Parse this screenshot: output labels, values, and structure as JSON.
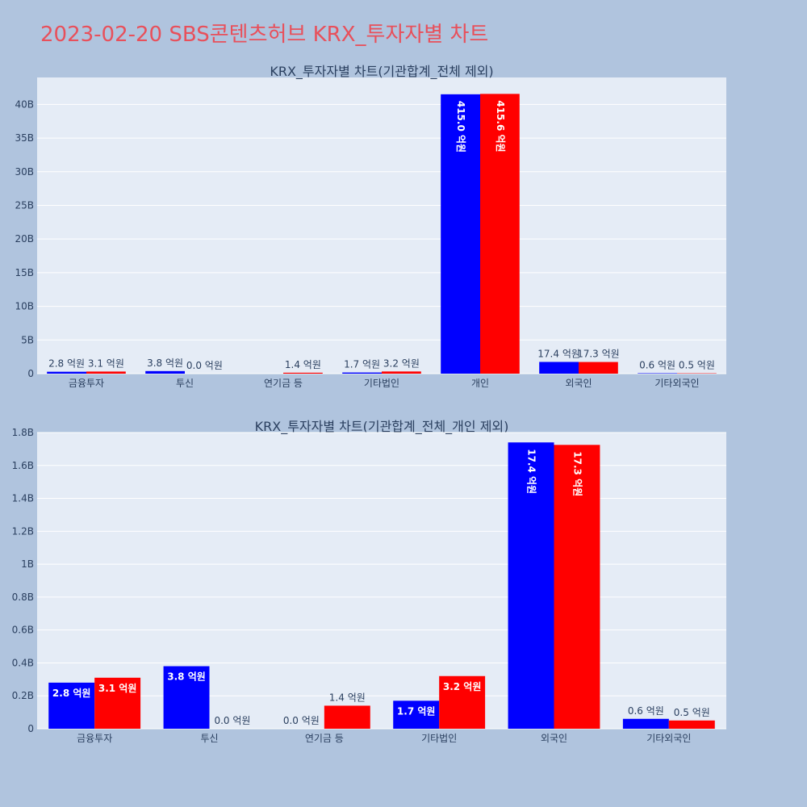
{
  "page_title": "2023-02-20 SBS콘텐츠허브 KRX_투자자별 차트",
  "colors": {
    "series_a": "#0000ff",
    "series_b": "#ff0000",
    "title": "#e8505b",
    "background": "#b0c4de",
    "plot_bg": "#e5ecf6"
  },
  "chart_data": [
    {
      "type": "bar",
      "title": "KRX_투자자별 차트(기관합계_전체 제외)",
      "categories": [
        "금융투자",
        "투신",
        "연기금 등",
        "기타법인",
        "개인",
        "외국인",
        "기타외국인"
      ],
      "series": [
        {
          "color": "#0000ff",
          "values": [
            0.28,
            0.38,
            0.0,
            0.17,
            41.5,
            1.74,
            0.06
          ],
          "labels": [
            "2.8 억원",
            "3.8 억원",
            "",
            "1.7 억원",
            "415.0 억원",
            "17.4 억원",
            "0.6 억원"
          ]
        },
        {
          "color": "#ff0000",
          "values": [
            0.31,
            0.0,
            0.14,
            0.32,
            41.56,
            1.73,
            0.05
          ],
          "labels": [
            "3.1 억원",
            "0.0 억원",
            "1.4 억원",
            "3.2 억원",
            "415.6 억원",
            "17.3 억원",
            "0.5 억원"
          ]
        }
      ],
      "ylim": [
        0,
        44
      ],
      "yticks": [
        0,
        5,
        10,
        15,
        20,
        25,
        30,
        35,
        40
      ],
      "ytick_labels": [
        "0",
        "5B",
        "10B",
        "15B",
        "20B",
        "25B",
        "30B",
        "35B",
        "40B"
      ],
      "grid": true
    },
    {
      "type": "bar",
      "title": "KRX_투자자별 차트(기관합계_전체_개인 제외)",
      "categories": [
        "금융투자",
        "투신",
        "연기금 등",
        "기타법인",
        "외국인",
        "기타외국인"
      ],
      "series": [
        {
          "color": "#0000ff",
          "values": [
            0.28,
            0.38,
            0.0,
            0.17,
            1.74,
            0.06
          ],
          "labels": [
            "2.8 억원",
            "3.8 억원",
            "0.0 억원",
            "1.7 억원",
            "17.4 억원",
            "0.6 억원"
          ]
        },
        {
          "color": "#ff0000",
          "values": [
            0.31,
            0.0,
            0.14,
            0.32,
            1.725,
            0.05
          ],
          "labels": [
            "3.1 억원",
            "0.0 억원",
            "1.4 억원",
            "3.2 억원",
            "17.3 억원",
            "0.5 억원"
          ]
        }
      ],
      "ylim": [
        0,
        1.8
      ],
      "yticks": [
        0,
        0.2,
        0.4,
        0.6,
        0.8,
        1.0,
        1.2,
        1.4,
        1.6,
        1.8
      ],
      "ytick_labels": [
        "0",
        "0.2B",
        "0.4B",
        "0.6B",
        "0.8B",
        "1B",
        "1.2B",
        "1.4B",
        "1.6B",
        "1.8B"
      ],
      "grid": true
    }
  ]
}
